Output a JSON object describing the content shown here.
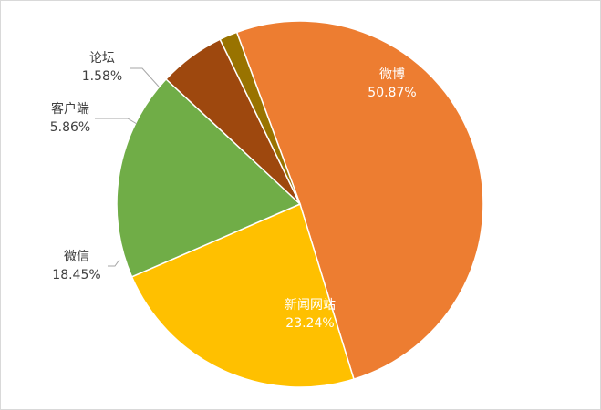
{
  "chart_data": {
    "type": "pie",
    "title": "",
    "slices": [
      {
        "label": "微博",
        "value": 50.87,
        "value_label": "50.87%",
        "color": "#ED7D31",
        "label_color": "#ffffff"
      },
      {
        "label": "新闻网站",
        "value": 23.24,
        "value_label": "23.24%",
        "color": "#FFC000",
        "label_color": "#ffffff"
      },
      {
        "label": "微信",
        "value": 18.45,
        "value_label": "18.45%",
        "color": "#70AD47",
        "label_color": "#404040"
      },
      {
        "label": "客户端",
        "value": 5.86,
        "value_label": "5.86%",
        "color": "#9E480E",
        "label_color": "#404040"
      },
      {
        "label": "论坛",
        "value": 1.58,
        "value_label": "1.58%",
        "color": "#997300",
        "label_color": "#404040"
      }
    ],
    "legend": "none",
    "data_labels": "category name and percentage"
  }
}
